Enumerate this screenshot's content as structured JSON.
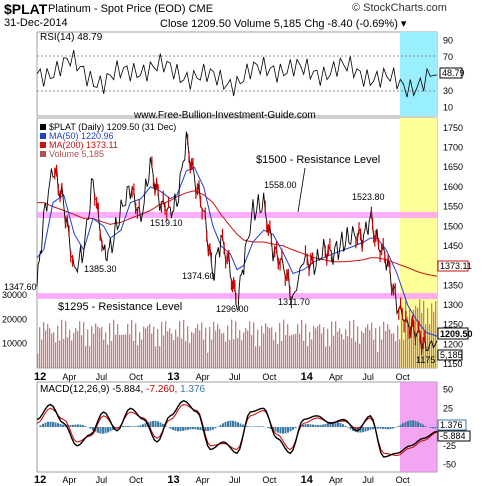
{
  "header": {
    "symbol": "$PLAT",
    "name": "Platinum  - Spot Price (EOD)  CME",
    "date": "31-Dec-2014",
    "stats": "Close 1209.50  Volume 5,185  Chg -8.40 (-0.69%) ▾",
    "source": "© StockCharts.com"
  },
  "rsi_panel": {
    "label": "RSI(14) 48.79",
    "current_tag": "48.79",
    "ticks": [
      "90",
      "70",
      "50",
      "30",
      "10"
    ],
    "tick_values": [
      90,
      70,
      50,
      30,
      10
    ],
    "ylim": [
      0,
      100
    ]
  },
  "price_panel": {
    "website": "www.Free-Bullion-Investment-Guide.com",
    "legend": [
      {
        "label": "$PLAT (Daily) 1209.50 (31 Dec)",
        "color": "#000000"
      },
      {
        "label": "MA(50) 1220.96",
        "color": "#1f3fd0"
      },
      {
        "label": "MA(200) 1373.11",
        "color": "#cc1111"
      },
      {
        "label": "Volume 5,185",
        "color": "#b05050"
      }
    ],
    "annotations": {
      "resistance_1500": "$1500 - Resistance Level",
      "resistance_1295": "$1295 - Resistance Level"
    },
    "price_ticks": [
      "1750",
      "1700",
      "1650",
      "1600",
      "1550",
      "1500",
      "1450",
      "1400",
      "1350",
      "1300",
      "1250",
      "1200",
      "1150"
    ],
    "price_tick_values": [
      1750,
      1700,
      1650,
      1600,
      1550,
      1500,
      1450,
      1400,
      1350,
      1300,
      1250,
      1200,
      1150
    ],
    "volume_ticks": [
      "30000",
      "20000",
      "10000"
    ],
    "volume_tick_values": [
      30000,
      20000,
      10000
    ],
    "tags": {
      "ma200": "1373.11",
      "close": "1209.50",
      "volume": "5,185",
      "low": "1175"
    },
    "value_labels": [
      "1347.60",
      "1385.30",
      "1519.10",
      "1374.60",
      "1296.00",
      "1558.00",
      "1311.70",
      "1523.80"
    ]
  },
  "macd_panel": {
    "label_prefix": "MACD(12,26,9)",
    "macd_value": "-5.884,",
    "signal_value": "-7.260,",
    "histogram_value": "1.376",
    "ticks": [
      "50",
      "25",
      "0",
      "-25",
      "-50"
    ],
    "tick_values": [
      50,
      25,
      0,
      -25,
      -50
    ],
    "tags": [
      "1.376",
      "-5.884"
    ]
  },
  "x_axis": {
    "ticks": [
      "12",
      "Apr",
      "Jul",
      "Oct",
      "13",
      "Apr",
      "Jul",
      "Oct",
      "14",
      "Apr",
      "Jul",
      "Oct"
    ],
    "tick_positions": [
      0,
      0.25,
      0.5,
      0.75,
      1,
      1.25,
      1.5,
      1.75,
      2,
      2.25,
      2.5,
      2.75
    ]
  },
  "colors": {
    "resistance_band": "#ff99ff",
    "highlight_yellow": "#ffff99",
    "highlight_cyan": "#99eeff",
    "highlight_magenta": "#ee88ee",
    "price_up": "#000000",
    "price_down": "#cc0000",
    "ma50": "#1f3fd0",
    "ma200": "#cc1111",
    "volume": "#c08080",
    "macd_hist": "#3a7aa8"
  },
  "chart_data": [
    {
      "type": "line",
      "title": "RSI(14) 48.79",
      "ylim": [
        0,
        100
      ],
      "x": [
        0,
        0.25,
        0.5,
        0.75,
        1,
        1.25,
        1.5,
        1.75,
        2,
        2.25,
        2.5,
        2.75,
        3
      ],
      "series": [
        {
          "name": "RSI(14)",
          "values": [
            50,
            62,
            40,
            58,
            55,
            45,
            42,
            60,
            52,
            56,
            50,
            35,
            48.79
          ]
        }
      ]
    },
    {
      "type": "line",
      "title": "$PLAT (Daily) 1209.50 (31 Dec)",
      "x": [
        0,
        0.05,
        0.12,
        0.2,
        0.28,
        0.35,
        0.42,
        0.5,
        0.55,
        0.63,
        0.7,
        0.78,
        0.85,
        0.92,
        1,
        1.05,
        1.12,
        1.18,
        1.25,
        1.32,
        1.38,
        1.45,
        1.5,
        1.55,
        1.62,
        1.7,
        1.77,
        1.85,
        1.92,
        2,
        2.08,
        2.15,
        2.22,
        2.3,
        2.38,
        2.45,
        2.5,
        2.55,
        2.62,
        2.7,
        2.78,
        2.85,
        2.92,
        3
      ],
      "series": [
        {
          "name": "$PLAT (Daily)",
          "values": [
            1347.6,
            1520,
            1650,
            1560,
            1385.3,
            1440,
            1620,
            1430,
            1440,
            1540,
            1600,
            1519.1,
            1660,
            1560,
            1540,
            1560,
            1720,
            1620,
            1540,
            1374.6,
            1470,
            1390,
            1296.0,
            1410,
            1540,
            1558.0,
            1440,
            1400,
            1311.7,
            1420,
            1400,
            1440,
            1430,
            1460,
            1480,
            1470,
            1523.8,
            1460,
            1420,
            1300,
            1250,
            1230,
            1190,
            1209.5
          ]
        },
        {
          "name": "MA(50)",
          "values": [
            1420,
            1440,
            1560,
            1580,
            1480,
            1440,
            1520,
            1500,
            1470,
            1490,
            1560,
            1570,
            1600,
            1590,
            1570,
            1580,
            1640,
            1650,
            1600,
            1500,
            1450,
            1430,
            1390,
            1400,
            1460,
            1490,
            1480,
            1430,
            1380,
            1390,
            1410,
            1420,
            1430,
            1440,
            1450,
            1460,
            1470,
            1470,
            1440,
            1380,
            1300,
            1260,
            1230,
            1220.96
          ]
        },
        {
          "name": "MA(200)",
          "values": [
            1560,
            1560,
            1550,
            1540,
            1530,
            1520,
            1520,
            1510,
            1505,
            1510,
            1520,
            1530,
            1540,
            1555,
            1565,
            1575,
            1585,
            1590,
            1580,
            1560,
            1530,
            1500,
            1480,
            1465,
            1460,
            1460,
            1455,
            1450,
            1440,
            1430,
            1420,
            1415,
            1410,
            1410,
            1412,
            1415,
            1420,
            1420,
            1415,
            1405,
            1395,
            1385,
            1378,
            1373.11
          ]
        }
      ]
    },
    {
      "type": "line",
      "title": "MACD(12,26,9) -5.884, -7.260, 1.376",
      "ylim": [
        -60,
        60
      ],
      "x": [
        0,
        0.1,
        0.2,
        0.3,
        0.4,
        0.5,
        0.6,
        0.7,
        0.8,
        0.9,
        1,
        1.1,
        1.2,
        1.3,
        1.4,
        1.5,
        1.6,
        1.7,
        1.8,
        1.9,
        2,
        2.1,
        2.2,
        2.3,
        2.4,
        2.5,
        2.6,
        2.7,
        2.8,
        2.9,
        3
      ],
      "series": [
        {
          "name": "MACD",
          "values": [
            10,
            30,
            5,
            -25,
            -10,
            20,
            -5,
            25,
            10,
            -20,
            15,
            35,
            20,
            -30,
            -20,
            -35,
            20,
            25,
            -15,
            -35,
            10,
            15,
            5,
            10,
            -5,
            15,
            -40,
            -35,
            -25,
            -15,
            -5.884
          ]
        },
        {
          "name": "Signal",
          "values": [
            5,
            25,
            10,
            -20,
            -12,
            15,
            -2,
            20,
            12,
            -15,
            10,
            30,
            22,
            -25,
            -22,
            -30,
            15,
            22,
            -10,
            -30,
            5,
            12,
            6,
            8,
            -2,
            12,
            -35,
            -38,
            -28,
            -18,
            -7.26
          ]
        },
        {
          "name": "Histogram",
          "values": [
            5,
            5,
            -5,
            -5,
            2,
            5,
            -3,
            5,
            -2,
            -5,
            5,
            5,
            -2,
            -5,
            2,
            -5,
            5,
            3,
            -5,
            -5,
            5,
            3,
            -1,
            2,
            -3,
            3,
            -5,
            3,
            3,
            3,
            1.376
          ]
        }
      ]
    }
  ]
}
